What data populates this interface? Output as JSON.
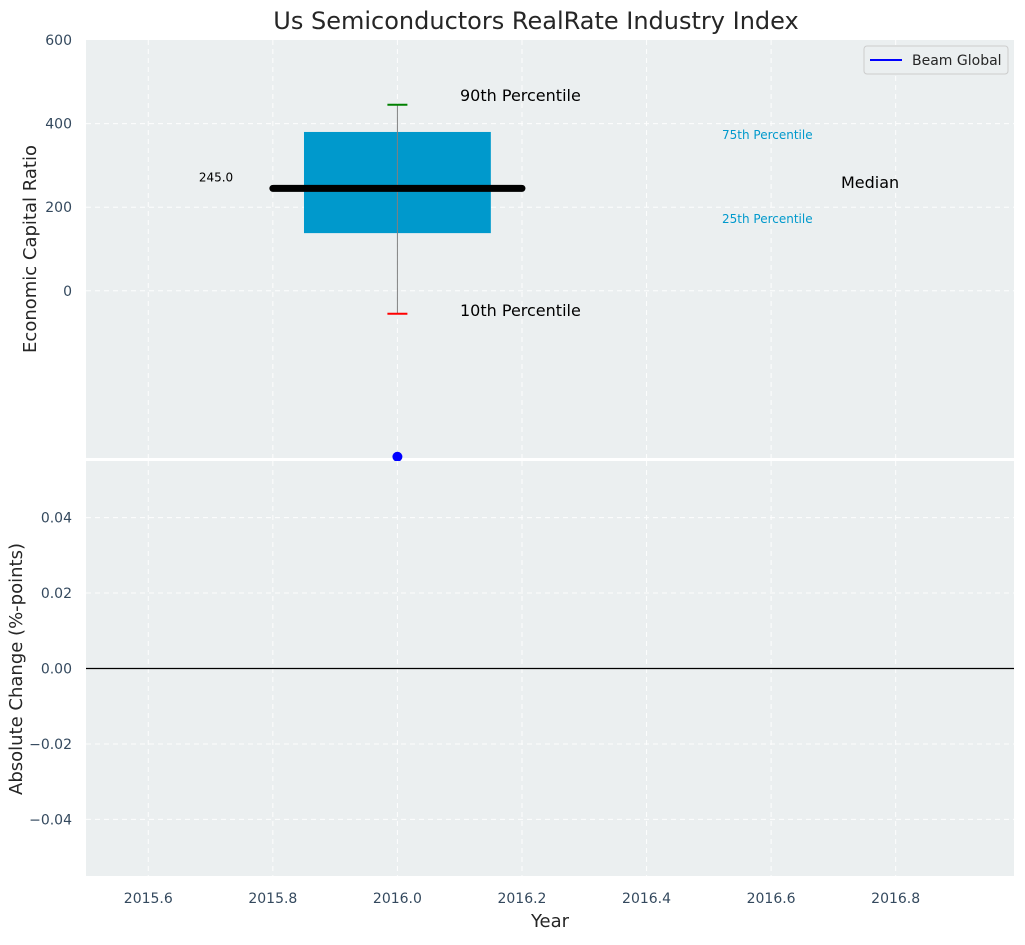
{
  "chart_data": [
    {
      "type": "box",
      "title": "Us Semiconductors RealRate Industry Index",
      "ylabel": "Economic Capital Ratio",
      "xlim": [
        2015.5,
        2016.99
      ],
      "ylim": [
        -400,
        600
      ],
      "yticks": [
        0,
        200,
        400,
        600
      ],
      "grid": true,
      "legend": {
        "placement": "top-right",
        "entries": [
          {
            "label": "Beam Global",
            "color": "#0000ff"
          }
        ]
      },
      "box": {
        "x": 2016.0,
        "p10": -55,
        "p25": 138,
        "median": 245,
        "p75": 380,
        "p90": 445,
        "box_x_range": [
          2015.85,
          2016.15
        ],
        "median_x_range": [
          2015.8,
          2016.2
        ],
        "median_label": "245.0",
        "fill_color": "#0099cc",
        "p10_color": "#ff0000",
        "p90_color": "#008000"
      },
      "point": {
        "name": "Beam Global",
        "x": 2016.0,
        "y": -397,
        "color": "#0000ff"
      },
      "annotations": {
        "p90": "90th Percentile",
        "p10": "10th Percentile",
        "p75": "75th Percentile",
        "p25": "25th Percentile",
        "median": "Median"
      },
      "annotation_colors": {
        "outer": "#000000",
        "quartile": "#0099cc"
      }
    },
    {
      "type": "line",
      "xlabel": "Year",
      "ylabel": "Absolute Change (%-points)",
      "xlim": [
        2015.5,
        2016.99
      ],
      "ylim": [
        -0.055,
        0.055
      ],
      "xticks": [
        2015.6,
        2015.8,
        2016.0,
        2016.2,
        2016.4,
        2016.6,
        2016.8
      ],
      "xtick_labels": [
        "2015.6",
        "2015.8",
        "2016.0",
        "2016.2",
        "2016.4",
        "2016.6",
        "2016.8"
      ],
      "yticks": [
        -0.04,
        -0.02,
        0.0,
        0.02,
        0.04
      ],
      "ytick_labels": [
        "−0.04",
        "−0.02",
        "0.00",
        "0.02",
        "0.04"
      ],
      "reference_line_y": 0.0,
      "grid": true,
      "series": []
    }
  ],
  "colors": {
    "plot_background": "#ebeff0",
    "text": "#34495e"
  }
}
